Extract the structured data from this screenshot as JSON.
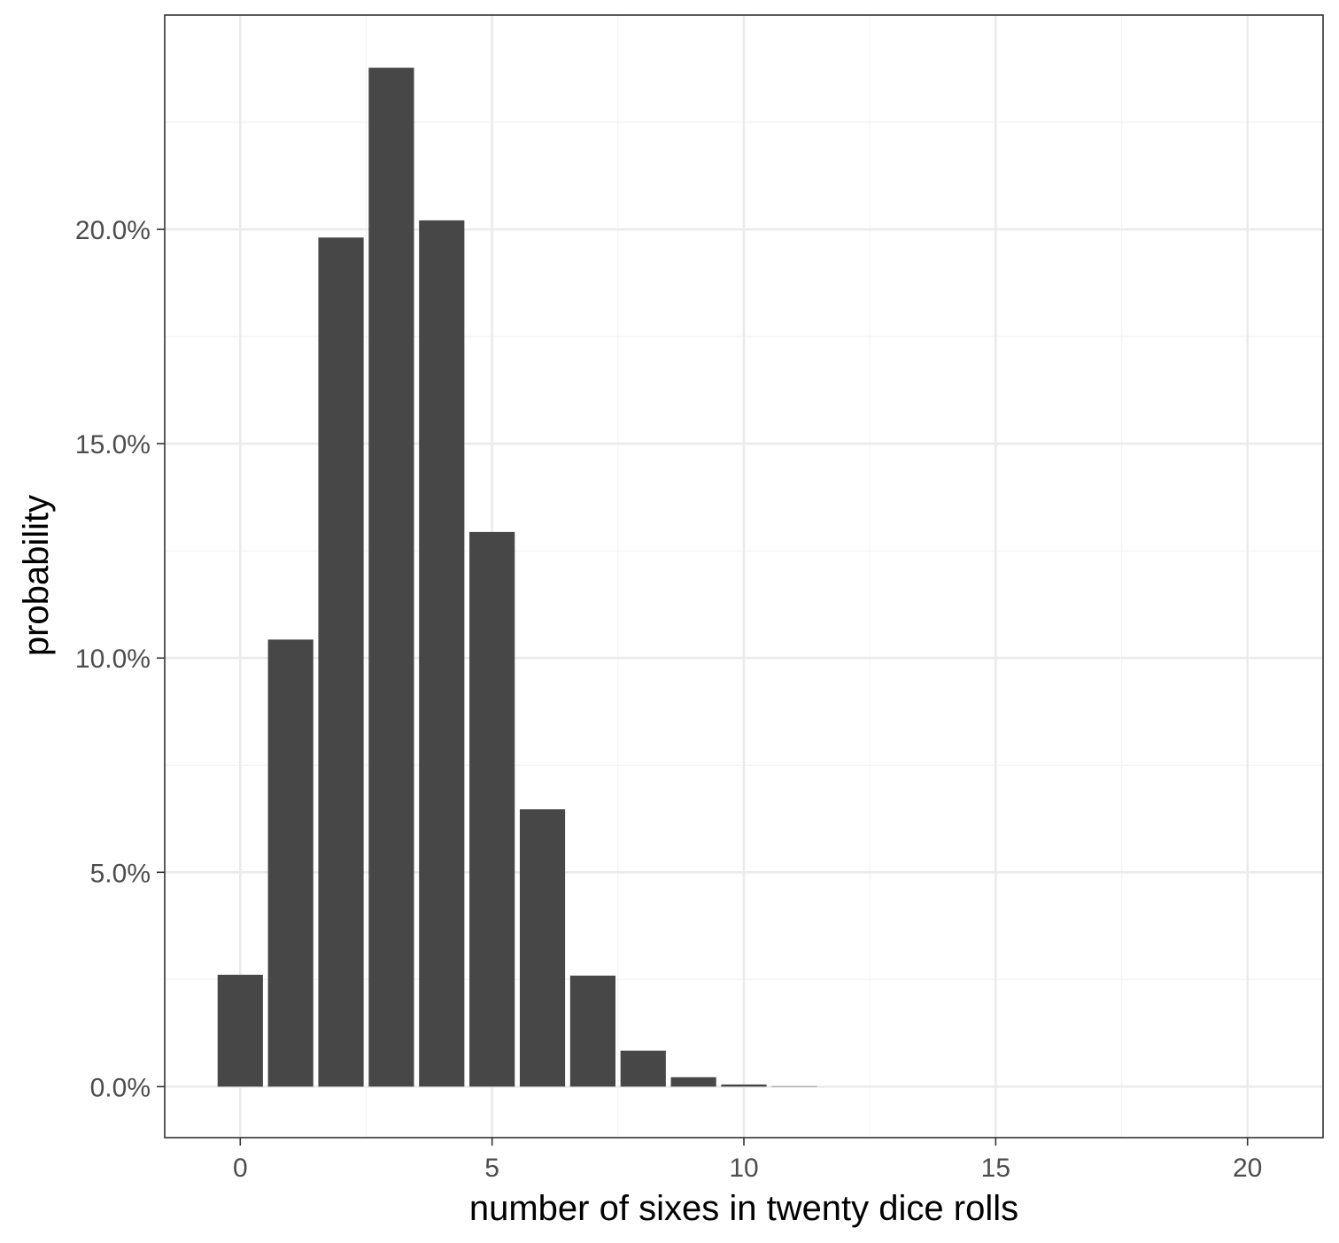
{
  "chart_data": {
    "type": "bar",
    "xlabel": "number of sixes in twenty dice rolls",
    "ylabel": "probability",
    "x": [
      0,
      1,
      2,
      3,
      4,
      5,
      6,
      7,
      8,
      9,
      10,
      11,
      12,
      13,
      14,
      15,
      16,
      17,
      18,
      19,
      20
    ],
    "values": [
      2.61,
      10.43,
      19.81,
      23.77,
      20.21,
      12.94,
      6.47,
      2.59,
      0.84,
      0.22,
      0.05,
      0.01,
      0.0,
      0.0,
      0.0,
      0.0,
      0.0,
      0.0,
      0.0,
      0.0,
      0.0
    ],
    "value_unit": "%",
    "xlim": [
      -1.5,
      21.5
    ],
    "ylim": [
      -1.19,
      25.0
    ],
    "x_ticks": [
      0,
      5,
      10,
      15,
      20
    ],
    "x_tick_labels": [
      "0",
      "5",
      "10",
      "15",
      "20"
    ],
    "y_ticks": [
      0,
      5,
      10,
      15,
      20
    ],
    "y_tick_labels": [
      "0.0%",
      "5.0%",
      "10.0%",
      "15.0%",
      "20.0%"
    ],
    "grid": true,
    "legend": "none",
    "colors": {
      "bar": "#474747",
      "grid_major": "#ebebeb",
      "grid_minor": "#f4f4f4",
      "panel_border": "#333333",
      "tick_text": "#4d4d4d"
    }
  }
}
